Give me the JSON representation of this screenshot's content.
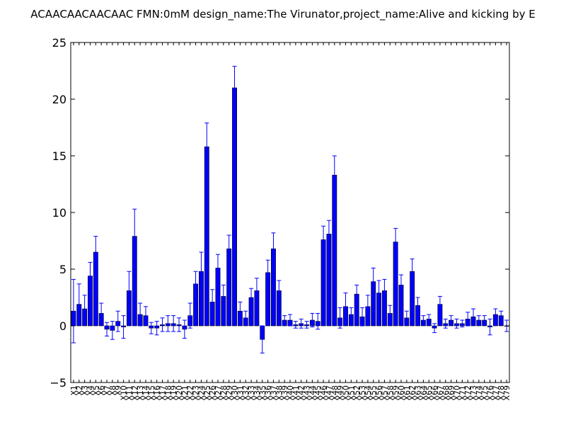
{
  "chart_data": {
    "type": "bar",
    "title": "ACAACAACAACAAC  FMN:0mM  design_name:The Virunator,project_name:Alive and kicking by E",
    "xlabel": "",
    "ylabel": "",
    "ylim": [
      -5,
      25
    ],
    "yticks": [
      -5,
      0,
      5,
      10,
      15,
      20,
      25
    ],
    "grid": false,
    "bar_color": "#0000ff",
    "error_color": "#0000ff",
    "categories": [
      "X1",
      "X2",
      "X3",
      "X4",
      "X5",
      "X6",
      "X7",
      "X8",
      "X9",
      "X10",
      "X11",
      "X12",
      "X13",
      "X14",
      "X15",
      "X16",
      "X17",
      "X18",
      "X19",
      "X20",
      "X21",
      "X22",
      "X23",
      "X24",
      "X25",
      "X26",
      "X27",
      "X28",
      "X29",
      "X30",
      "X31",
      "X32",
      "X33",
      "X34",
      "X35",
      "X36",
      "X37",
      "X38",
      "X39",
      "X40",
      "X41",
      "X42",
      "X43",
      "X44",
      "X45",
      "X46",
      "X47",
      "X48",
      "X49",
      "X50",
      "X51",
      "X52",
      "X53",
      "X54",
      "X55",
      "X56",
      "X57",
      "X58",
      "X59",
      "X60",
      "X61",
      "X62",
      "X63",
      "X64",
      "X65",
      "X66",
      "X67",
      "X68",
      "X69",
      "X70",
      "X71",
      "X72",
      "X73",
      "X74",
      "X75",
      "X76",
      "X77",
      "X78",
      "X79"
    ],
    "values": [
      1.3,
      1.9,
      1.5,
      4.4,
      6.5,
      1.1,
      -0.3,
      -0.4,
      0.4,
      -0.1,
      3.1,
      7.9,
      1.0,
      0.9,
      -0.2,
      -0.2,
      0.1,
      0.2,
      0.2,
      0.1,
      -0.3,
      0.9,
      3.7,
      4.8,
      15.8,
      2.1,
      5.1,
      2.6,
      6.8,
      21.0,
      1.3,
      0.7,
      2.5,
      3.1,
      -1.2,
      4.7,
      6.8,
      3.1,
      0.5,
      0.5,
      0.1,
      0.2,
      0.1,
      0.5,
      0.4,
      7.6,
      8.1,
      13.3,
      0.7,
      1.7,
      1.0,
      2.8,
      0.8,
      1.7,
      3.9,
      2.9,
      3.1,
      1.1,
      7.4,
      3.6,
      0.7,
      4.8,
      1.8,
      0.5,
      0.6,
      -0.2,
      1.9,
      0.2,
      0.5,
      0.2,
      0.2,
      0.6,
      0.8,
      0.5,
      0.5,
      -0.1,
      1.0,
      0.9,
      0.0
    ],
    "errors": [
      2.8,
      1.8,
      1.2,
      1.2,
      1.4,
      0.9,
      0.6,
      0.8,
      0.9,
      1.0,
      1.7,
      2.4,
      1.0,
      0.8,
      0.5,
      0.6,
      0.6,
      0.7,
      0.7,
      0.6,
      0.8,
      1.1,
      1.1,
      1.7,
      2.1,
      1.1,
      1.2,
      1.0,
      1.2,
      1.9,
      0.8,
      0.6,
      0.8,
      1.1,
      1.2,
      1.1,
      1.4,
      0.9,
      0.4,
      0.5,
      0.3,
      0.4,
      0.3,
      0.6,
      0.7,
      1.2,
      1.2,
      1.7,
      0.9,
      1.2,
      0.6,
      0.8,
      0.8,
      1.0,
      1.2,
      1.1,
      1.0,
      0.7,
      1.2,
      0.9,
      0.6,
      1.1,
      0.7,
      0.4,
      0.4,
      0.4,
      0.7,
      0.4,
      0.4,
      0.4,
      0.3,
      0.6,
      0.7,
      0.4,
      0.4,
      0.7,
      0.5,
      0.4,
      0.5
    ]
  }
}
